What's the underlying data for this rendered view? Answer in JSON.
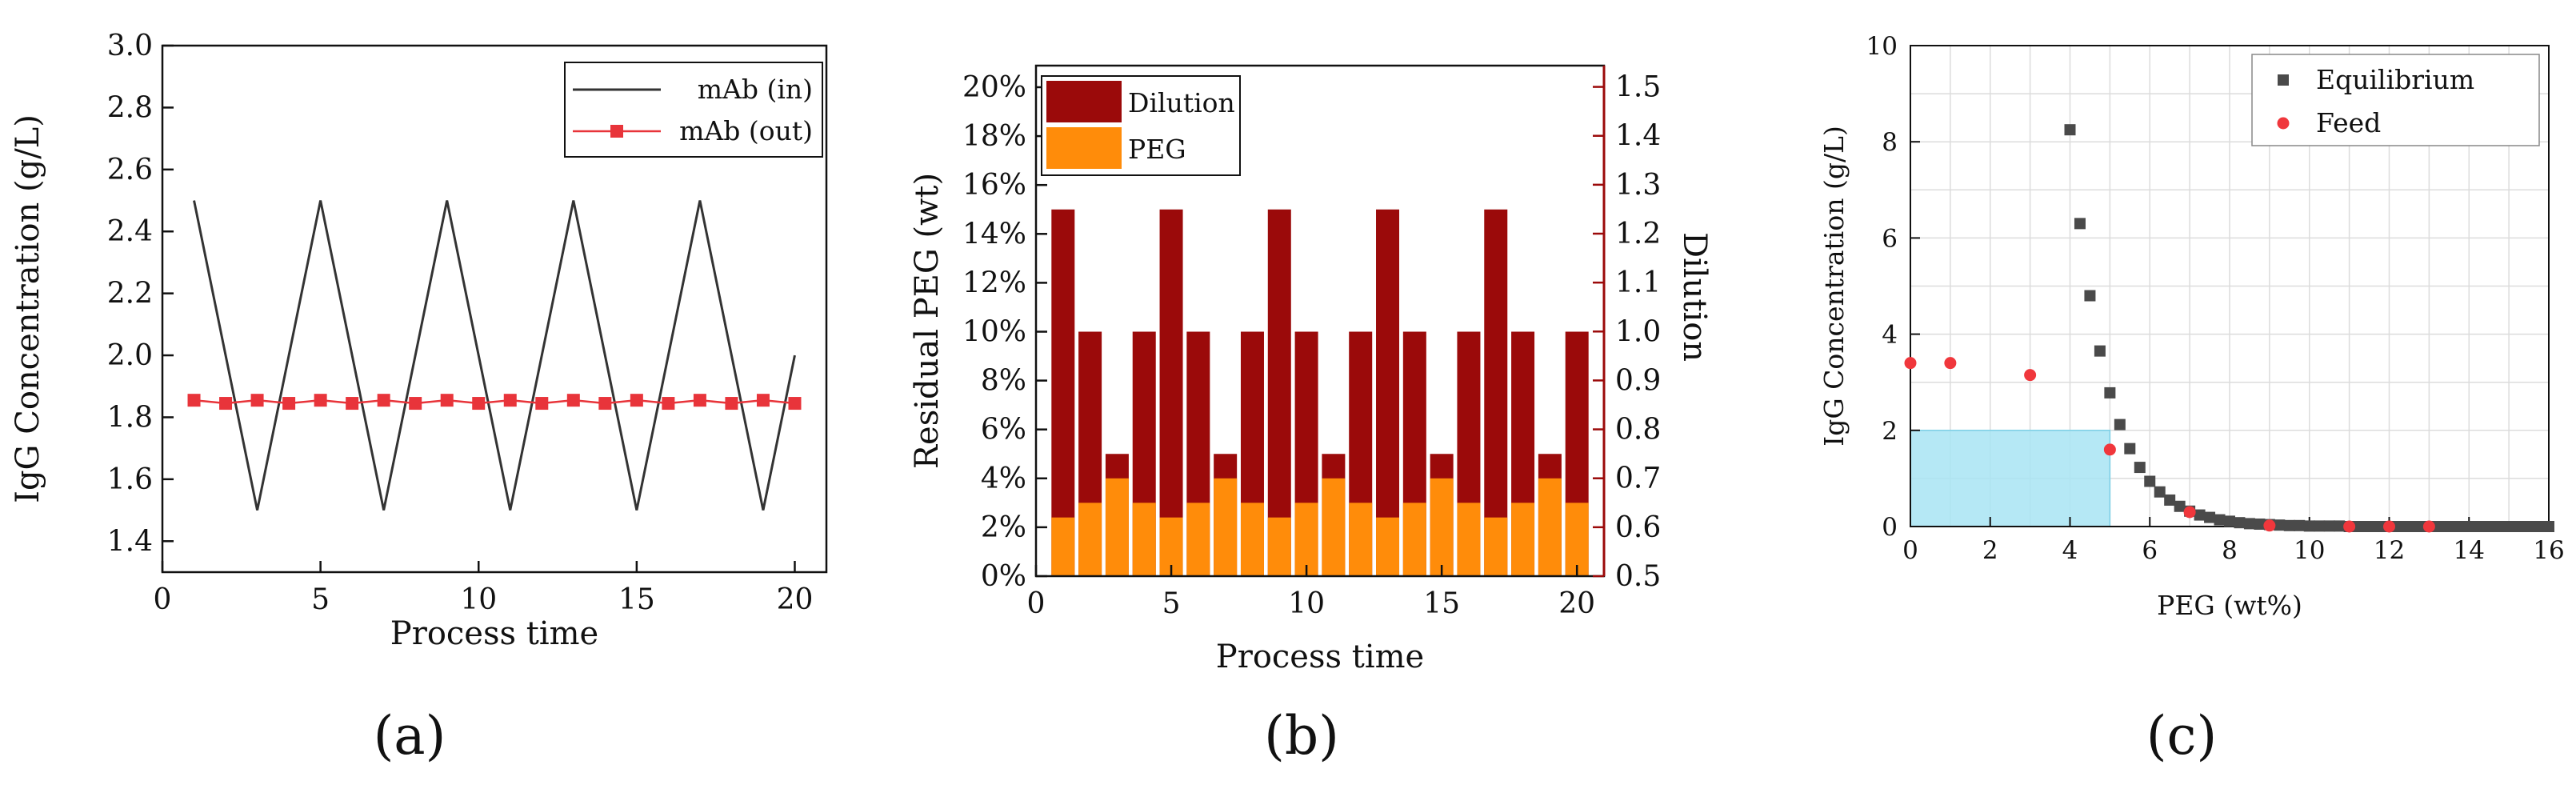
{
  "chart_data": [
    {
      "panel": "a",
      "type": "line",
      "xlabel": "Process time",
      "ylabel": "IgG Concentration (g/L)",
      "xlim": [
        0,
        21
      ],
      "ylim": [
        1.3,
        3.0
      ],
      "x_ticks": [
        "0",
        "5",
        "10",
        "15",
        "20"
      ],
      "y_ticks": [
        "1.4",
        "1.6",
        "1.8",
        "2.0",
        "2.2",
        "2.4",
        "2.6",
        "2.8",
        "3.0"
      ],
      "legend_position": "top-right",
      "grid": false,
      "series": [
        {
          "name": "mAb (in)",
          "color": "#333333",
          "x": [
            1,
            3,
            5,
            7,
            9,
            11,
            13,
            15,
            17,
            19,
            20
          ],
          "y": [
            2.5,
            1.5,
            2.5,
            1.5,
            2.5,
            1.5,
            2.5,
            1.5,
            2.5,
            1.5,
            2.0
          ]
        },
        {
          "name": "mAb (out)",
          "color": "#e8343a",
          "marker": "square",
          "x": [
            1,
            2,
            3,
            4,
            5,
            6,
            7,
            8,
            9,
            10,
            11,
            12,
            13,
            14,
            15,
            16,
            17,
            18,
            19,
            20
          ],
          "y": [
            1.855,
            1.845,
            1.855,
            1.845,
            1.855,
            1.845,
            1.855,
            1.845,
            1.855,
            1.845,
            1.855,
            1.845,
            1.855,
            1.845,
            1.855,
            1.845,
            1.855,
            1.845,
            1.855,
            1.845
          ]
        }
      ]
    },
    {
      "panel": "b",
      "type": "bar",
      "xlabel": "Process time",
      "ylabel": "Residual PEG (wt)",
      "ylabel_right": "Dilution",
      "xlim": [
        0,
        21
      ],
      "ylim_right": [
        0.5,
        1.55
      ],
      "x_ticks": [
        "0",
        "5",
        "10",
        "15",
        "20"
      ],
      "y_ticks": [
        "0%",
        "2%",
        "4%",
        "6%",
        "8%",
        "10%",
        "12%",
        "14%",
        "16%",
        "18%",
        "20%"
      ],
      "y_right_ticks": [
        "0.5",
        "0.6",
        "0.7",
        "0.8",
        "0.9",
        "1.0",
        "1.1",
        "1.2",
        "1.3",
        "1.4",
        "1.5"
      ],
      "legend_position": "top-left",
      "grid": false,
      "x": [
        1,
        2,
        3,
        4,
        5,
        6,
        7,
        8,
        9,
        10,
        11,
        12,
        13,
        14,
        15,
        16,
        17,
        18,
        19,
        20
      ],
      "series": [
        {
          "name": "Dilution",
          "color": "#9b0a0a",
          "values": [
            15,
            10,
            5,
            10,
            15,
            10,
            5,
            10,
            15,
            10,
            5,
            10,
            15,
            10,
            5,
            10,
            15,
            10,
            5,
            10
          ]
        },
        {
          "name": "PEG",
          "color": "#ff8c0a",
          "values": [
            2.4,
            3,
            4,
            3,
            2.4,
            3,
            4,
            3,
            2.4,
            3,
            4,
            3,
            2.4,
            3,
            4,
            3,
            2.4,
            3,
            4,
            3
          ]
        }
      ]
    },
    {
      "panel": "c",
      "type": "scatter",
      "xlabel": "PEG (wt%)",
      "ylabel": "IgG Concentration (g/L)",
      "xlim": [
        0,
        16
      ],
      "ylim": [
        0,
        10
      ],
      "x_ticks": [
        "0",
        "2",
        "4",
        "6",
        "8",
        "10",
        "12",
        "14",
        "16"
      ],
      "y_ticks": [
        "0",
        "2",
        "4",
        "6",
        "8",
        "10"
      ],
      "legend_position": "top-right",
      "grid": true,
      "shaded_region": {
        "x": [
          0,
          5
        ],
        "y": [
          0,
          2
        ],
        "color": "#a8e4f3"
      },
      "series": [
        {
          "name": "Equilibrium",
          "color": "#4a4a4a",
          "marker": "square",
          "x": [
            4.0,
            4.25,
            4.5,
            4.75,
            5.0,
            5.25,
            5.5,
            5.75,
            6.0,
            6.25,
            6.5,
            6.75,
            7.0,
            7.25,
            7.5,
            7.75,
            8.0,
            8.25,
            8.5,
            8.75,
            9.0,
            9.25,
            9.5,
            9.75,
            10.0,
            10.25,
            10.5,
            10.75,
            11.0,
            11.25,
            11.5,
            11.75,
            12.0,
            12.25,
            12.5,
            12.75,
            13.0,
            13.25,
            13.5,
            13.75,
            14.0,
            14.25,
            14.5,
            14.75,
            15.0,
            15.25,
            15.5,
            15.75,
            16.0
          ],
          "y": [
            8.25,
            6.3,
            4.8,
            3.65,
            2.78,
            2.12,
            1.62,
            1.23,
            0.94,
            0.72,
            0.55,
            0.42,
            0.32,
            0.24,
            0.19,
            0.14,
            0.11,
            0.08,
            0.06,
            0.05,
            0.04,
            0.03,
            0.02,
            0.02,
            0.01,
            0.01,
            0.01,
            0.01,
            0.0,
            0.0,
            0.0,
            0.0,
            0.0,
            0.0,
            0.0,
            0.0,
            0.0,
            0.0,
            0.0,
            0.0,
            0.0,
            0.0,
            0.0,
            0.0,
            0.0,
            0.0,
            0.0,
            0.0,
            0.0
          ]
        },
        {
          "name": "Feed",
          "color": "#f0373c",
          "marker": "circle",
          "x": [
            0,
            1,
            3,
            5,
            7,
            9,
            11,
            12,
            13
          ],
          "y": [
            3.4,
            3.4,
            3.15,
            1.6,
            0.3,
            0.02,
            0.0,
            0.0,
            0.0
          ]
        }
      ]
    }
  ],
  "panel_labels": [
    "(a)",
    "(b)",
    "(c)"
  ]
}
